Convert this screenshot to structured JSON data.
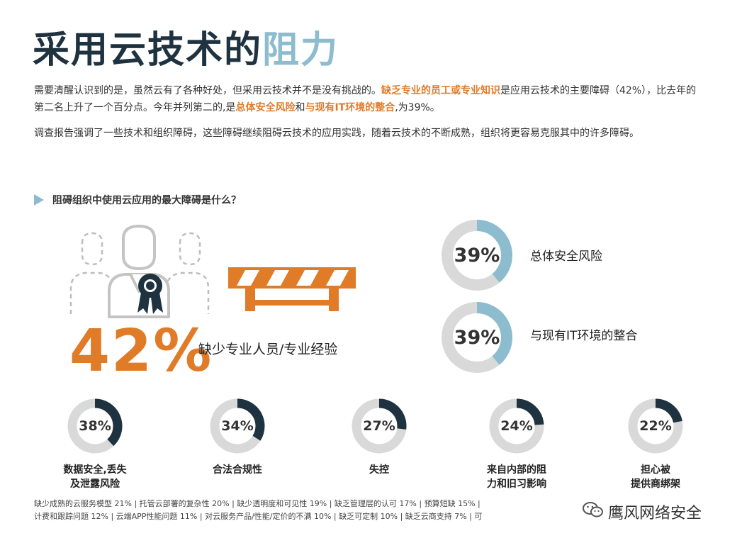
{
  "title": {
    "main": "采用云技术的",
    "accent": "阻力"
  },
  "intro": {
    "p1_a": "需要清醒认识到的是，虽然云有了各种好处，但采用云技术并不是没有挑战的。",
    "p1_hl1": "缺乏专业的员工或专业知识",
    "p1_b": "是应用云技术的主要障碍（42%），比去年的第二名上升了一个百分点。今年并列第二的,是",
    "p1_hl2": "总体安全风险",
    "p1_c": "和",
    "p1_hl3": "与现有IT环境的整合",
    "p1_d": ",为39%。",
    "p2": "调查报告强调了一些技术和组织障碍，这些障碍继续阻碍云技术的应用实践，随着云技术的不断成熟，组织将更容易克服其中的许多障碍。"
  },
  "question": "阻碍组织中使用云应用的最大障碍是什么？",
  "top_barrier": {
    "value": "42%",
    "label": "缺少专业人员/专业经验"
  },
  "major": [
    {
      "value": "39%",
      "label": "总体安全风险",
      "fraction": 0.39
    },
    {
      "value": "39%",
      "label": "与现有IT环境的整合",
      "fraction": 0.39
    }
  ],
  "minor": [
    {
      "value": "38%",
      "label_l1": "数据安全,丢失",
      "label_l2": "及泄露风险",
      "fraction": 0.38
    },
    {
      "value": "34%",
      "label_l1": "合法合规性",
      "label_l2": "",
      "fraction": 0.34
    },
    {
      "value": "27%",
      "label_l1": "失控",
      "label_l2": "",
      "fraction": 0.27
    },
    {
      "value": "24%",
      "label_l1": "来自内部的阻",
      "label_l2": "力和旧习影响",
      "fraction": 0.24
    },
    {
      "value": "22%",
      "label_l1": "担心被",
      "label_l2": "提供商绑架",
      "fraction": 0.22
    }
  ],
  "footer": {
    "line1": "缺少成熟的云服务模型 21%  |  托管云部署的复杂性 20%  |  缺少透明度和可见性 19%  |  缺乏管理层的认可 17%  |  预算短缺  15%  |",
    "line2": "计费和跟踪问题 12%  |  云端APP性能问题 11%  |  对云服务产品/性能/定价的不满 10%  | 缺乏可定制 10%  | 缺乏云商支持 7%  |  可"
  },
  "watermark": "鹰风网络安全",
  "colors": {
    "navy": "#1f3240",
    "orange": "#e07b28",
    "lightblue": "#8dbccf",
    "gray": "#d9d9d9"
  }
}
